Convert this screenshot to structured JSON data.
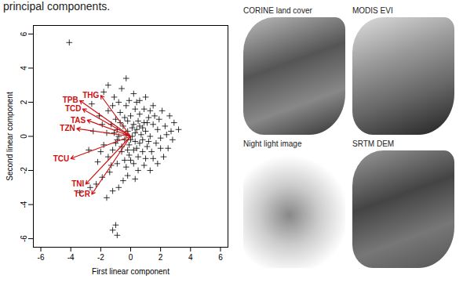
{
  "caption_fragment": "principal components.",
  "chart_data": {
    "type": "scatter",
    "x_label": "First linear component",
    "y_label": "Second linear component",
    "xlim": [
      -6.5,
      6.5
    ],
    "ylim": [
      -6.5,
      6.5
    ],
    "xticks": [
      -6,
      -4,
      -2,
      0,
      2,
      4,
      6
    ],
    "yticks": [
      -6,
      -4,
      -2,
      0,
      2,
      4,
      6
    ],
    "marker": "plus",
    "color": "#000000",
    "points": [
      [
        -4.1,
        5.5
      ],
      [
        -0.9,
        -5.8
      ],
      [
        -1.2,
        -5.5
      ],
      [
        -1.0,
        -5.2
      ],
      [
        -3.4,
        -3.3
      ],
      [
        -2.7,
        -3.0
      ],
      [
        -2.3,
        -2.8
      ],
      [
        -1.6,
        -3.6
      ],
      [
        -1.2,
        -3.2
      ],
      [
        -0.8,
        -3.0
      ],
      [
        -1.9,
        -2.4
      ],
      [
        -0.5,
        -2.6
      ],
      [
        -1.4,
        -2.1
      ],
      [
        -0.2,
        -2.3
      ],
      [
        0.3,
        -2.5
      ],
      [
        -2.2,
        -1.5
      ],
      [
        -2.8,
        -0.8
      ],
      [
        -2.5,
        0.3
      ],
      [
        -2.1,
        1.2
      ],
      [
        -2.6,
        1.9
      ],
      [
        -1.8,
        2.6
      ],
      [
        -1.5,
        3.0
      ],
      [
        -1.1,
        2.3
      ],
      [
        -0.6,
        2.8
      ],
      [
        -0.3,
        3.4
      ],
      [
        0.2,
        2.5
      ],
      [
        0.6,
        2.1
      ],
      [
        1.0,
        2.3
      ],
      [
        1.5,
        1.8
      ],
      [
        2.1,
        1.5
      ],
      [
        2.6,
        1.2
      ],
      [
        2.9,
        0.8
      ],
      [
        3.2,
        0.4
      ],
      [
        2.8,
        -0.2
      ],
      [
        2.5,
        -0.7
      ],
      [
        2.2,
        -1.2
      ],
      [
        1.8,
        -1.6
      ],
      [
        1.3,
        -2.0
      ],
      [
        0.9,
        -1.7
      ],
      [
        0.5,
        -2.0
      ],
      [
        -1.5,
        -1.2
      ],
      [
        -1.2,
        -0.8
      ],
      [
        -1.0,
        -0.4
      ],
      [
        -0.8,
        0.0
      ],
      [
        -0.9,
        0.4
      ],
      [
        -1.3,
        0.7
      ],
      [
        -1.6,
        0.2
      ],
      [
        -1.8,
        -0.5
      ],
      [
        -0.6,
        -0.9
      ],
      [
        -0.4,
        -1.4
      ],
      [
        -0.1,
        -1.1
      ],
      [
        0.2,
        -0.8
      ],
      [
        0.5,
        -1.2
      ],
      [
        0.8,
        -0.9
      ],
      [
        1.1,
        -0.6
      ],
      [
        1.4,
        -0.9
      ],
      [
        1.7,
        -0.4
      ],
      [
        2.0,
        -0.1
      ],
      [
        1.8,
        0.4
      ],
      [
        1.5,
        0.7
      ],
      [
        1.2,
        1.1
      ],
      [
        0.9,
        0.8
      ],
      [
        0.6,
        1.3
      ],
      [
        0.3,
        1.6
      ],
      [
        0.0,
        1.2
      ],
      [
        -0.3,
        1.8
      ],
      [
        -0.7,
        1.4
      ],
      [
        -1.0,
        1.0
      ],
      [
        -0.5,
        0.6
      ],
      [
        -0.2,
        0.3
      ],
      [
        0.1,
        0.0
      ],
      [
        0.4,
        0.4
      ],
      [
        0.7,
        0.1
      ],
      [
        1.0,
        0.3
      ],
      [
        1.3,
        0.0
      ],
      [
        0.6,
        -0.4
      ],
      [
        0.3,
        -0.3
      ],
      [
        -0.1,
        -0.5
      ],
      [
        -0.4,
        -0.2
      ],
      [
        -0.7,
        0.8
      ],
      [
        -0.2,
        0.9
      ],
      [
        0.2,
        0.7
      ],
      [
        0.5,
        0.9
      ],
      [
        0.8,
        0.5
      ],
      [
        1.1,
        0.8
      ],
      [
        1.6,
        1.2
      ],
      [
        2.3,
        0.6
      ],
      [
        2.4,
        0.1
      ],
      [
        2.0,
        -0.7
      ],
      [
        1.5,
        -1.3
      ],
      [
        1.0,
        -1.3
      ],
      [
        0.2,
        -1.6
      ],
      [
        -0.3,
        -1.8
      ],
      [
        -0.9,
        -1.6
      ],
      [
        -1.3,
        -1.7
      ],
      [
        -2.0,
        -0.9
      ],
      [
        -1.9,
        0.7
      ],
      [
        -1.5,
        1.5
      ],
      [
        -1.2,
        1.8
      ],
      [
        -0.8,
        2.0
      ],
      [
        -0.1,
        2.1
      ],
      [
        0.4,
        2.0
      ],
      [
        0.9,
        1.6
      ],
      [
        1.3,
        1.5
      ],
      [
        1.9,
        1.0
      ],
      [
        2.7,
        0.3
      ],
      [
        -0.6,
        -0.6
      ],
      [
        0.0,
        -0.2
      ],
      [
        0.3,
        0.2
      ],
      [
        -0.3,
        0.1
      ],
      [
        0.1,
        0.5
      ],
      [
        0.8,
        -0.2
      ],
      [
        -0.9,
        -0.2
      ],
      [
        -1.1,
        0.2
      ],
      [
        1.2,
        -0.3
      ],
      [
        0.4,
        -0.7
      ],
      [
        -0.2,
        -0.8
      ],
      [
        0.6,
        0.6
      ],
      [
        -0.4,
        1.1
      ],
      [
        0.0,
        -1.4
      ]
    ],
    "arrow_origin": [
      0,
      0
    ],
    "arrow_color": "#d01010",
    "arrows": [
      {
        "name": "TPB",
        "x": -3.4,
        "y": 2.1
      },
      {
        "name": "THG",
        "x": -2.0,
        "y": 2.4
      },
      {
        "name": "TCD",
        "x": -3.2,
        "y": 1.6
      },
      {
        "name": "TAS",
        "x": -2.9,
        "y": 0.95
      },
      {
        "name": "TZN",
        "x": -3.6,
        "y": 0.45
      },
      {
        "name": "TCU",
        "x": -4.0,
        "y": -1.3
      },
      {
        "name": "TNI",
        "x": -3.0,
        "y": -2.8
      },
      {
        "name": "TCR",
        "x": -2.6,
        "y": -3.4
      }
    ]
  },
  "panels": [
    {
      "title": "CORINE land cover"
    },
    {
      "title": "MODIS EVI"
    },
    {
      "title": "Night light image"
    },
    {
      "title": "SRTM DEM"
    }
  ]
}
